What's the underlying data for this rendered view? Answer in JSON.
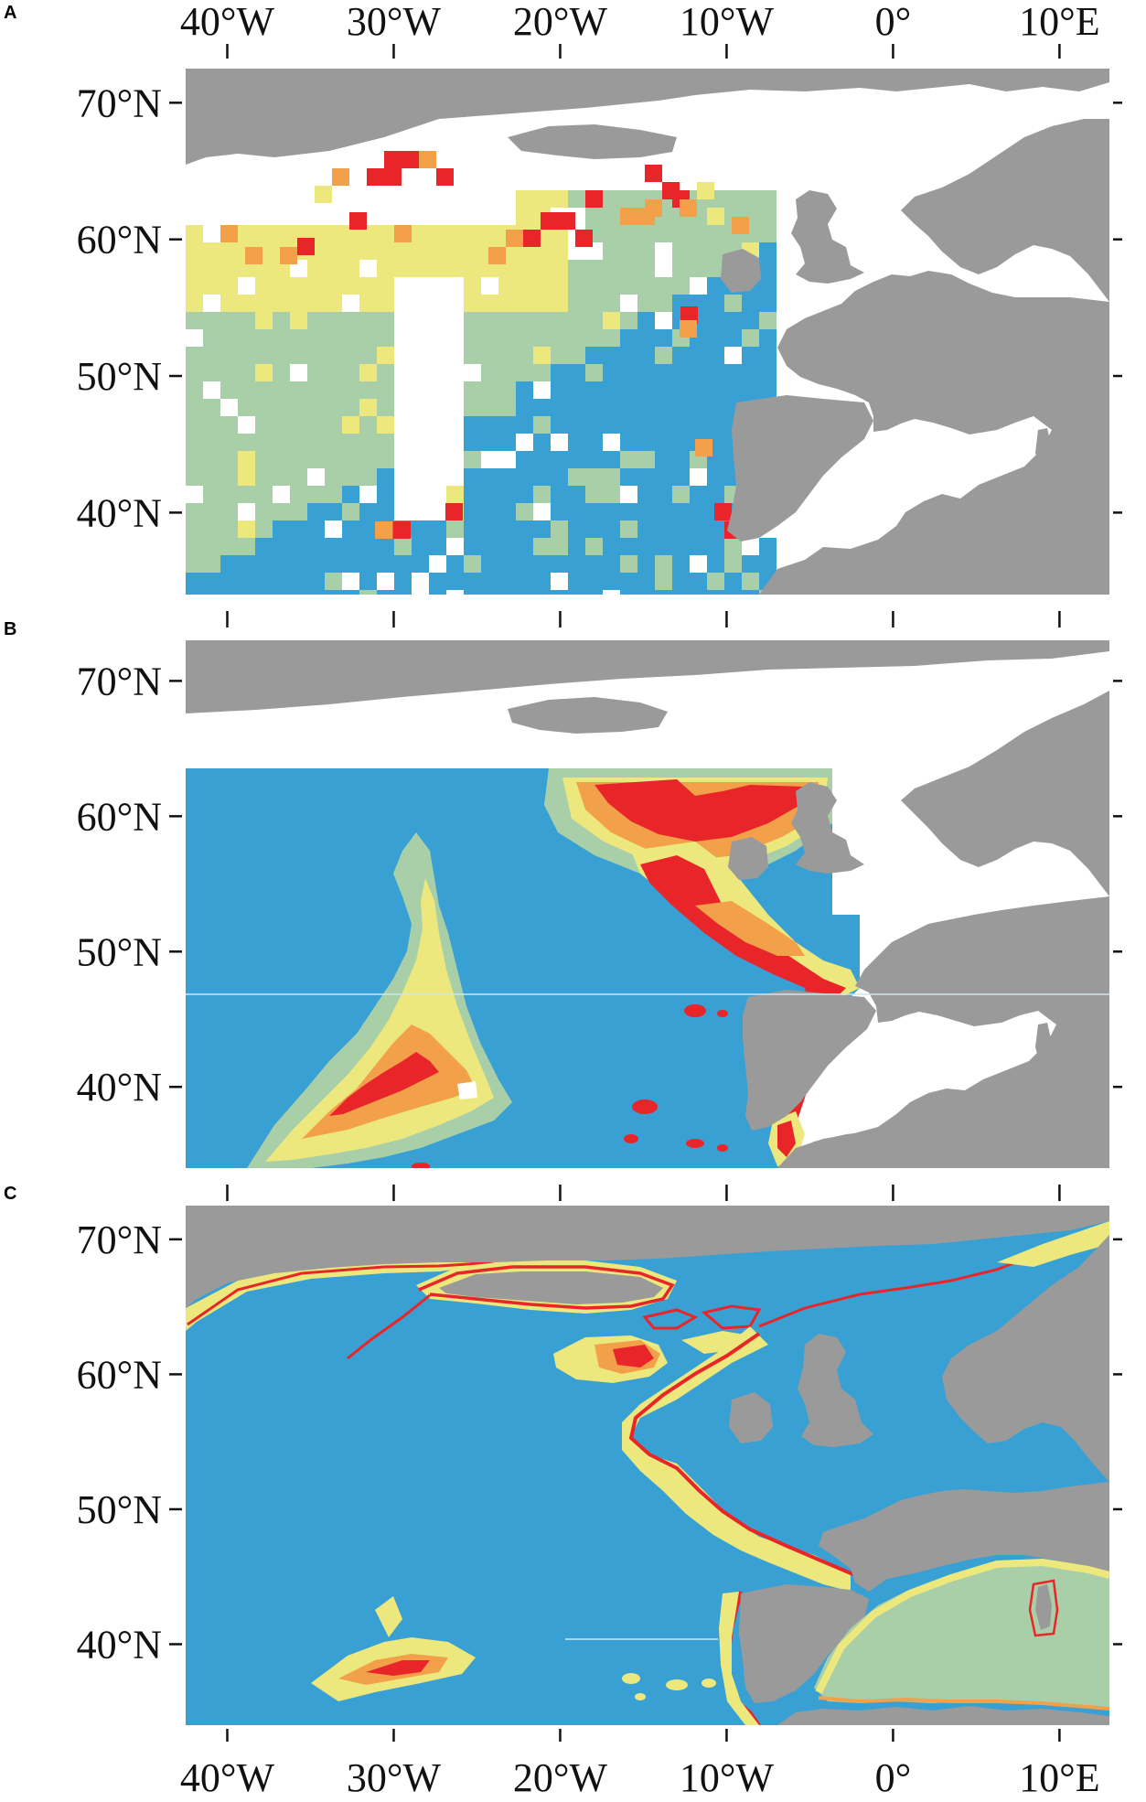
{
  "figure": {
    "colors": {
      "land": "#9a9a9a",
      "ocean_low": "#39a0d4",
      "low_mid": "#a9cfa9",
      "mid": "#ece87d",
      "high": "#f3a04a",
      "very_high": "#e8262a",
      "no_data": "#ffffff"
    },
    "x_ticks": [
      {
        "lon": -40,
        "label": "40°W"
      },
      {
        "lon": -30,
        "label": "30°W"
      },
      {
        "lon": -20,
        "label": "20°W"
      },
      {
        "lon": -10,
        "label": "10°W"
      },
      {
        "lon": 0,
        "label": "0°"
      },
      {
        "lon": 10,
        "label": "10°E"
      }
    ],
    "panels": [
      {
        "id": "A",
        "letter": "A",
        "lon_range": [
          -42.5,
          13
        ],
        "lat_range": [
          34,
          72.5
        ],
        "y_ticks": [
          {
            "lat": 70,
            "label": "70°N"
          },
          {
            "lat": 60,
            "label": "60°N"
          },
          {
            "lat": 50,
            "label": "50°N"
          },
          {
            "lat": 40,
            "label": "40°N"
          }
        ],
        "style": "gridded"
      },
      {
        "id": "B",
        "letter": "B",
        "lon_range": [
          -42.5,
          13
        ],
        "lat_range": [
          34,
          73
        ],
        "data_lat_max": 60,
        "y_ticks": [
          {
            "lat": 70,
            "label": "70°N"
          },
          {
            "lat": 60,
            "label": "60°N"
          },
          {
            "lat": 50,
            "label": "50°N"
          },
          {
            "lat": 40,
            "label": "40°N"
          }
        ],
        "style": "continuous"
      },
      {
        "id": "C",
        "letter": "C",
        "lon_range": [
          -42.5,
          13
        ],
        "lat_range": [
          34,
          72.5
        ],
        "y_ticks": [
          {
            "lat": 70,
            "label": "70°N"
          },
          {
            "lat": 60,
            "label": "60°N"
          },
          {
            "lat": 50,
            "label": "50°N"
          },
          {
            "lat": 40,
            "label": "40°N"
          }
        ],
        "style": "continuous"
      }
    ]
  }
}
